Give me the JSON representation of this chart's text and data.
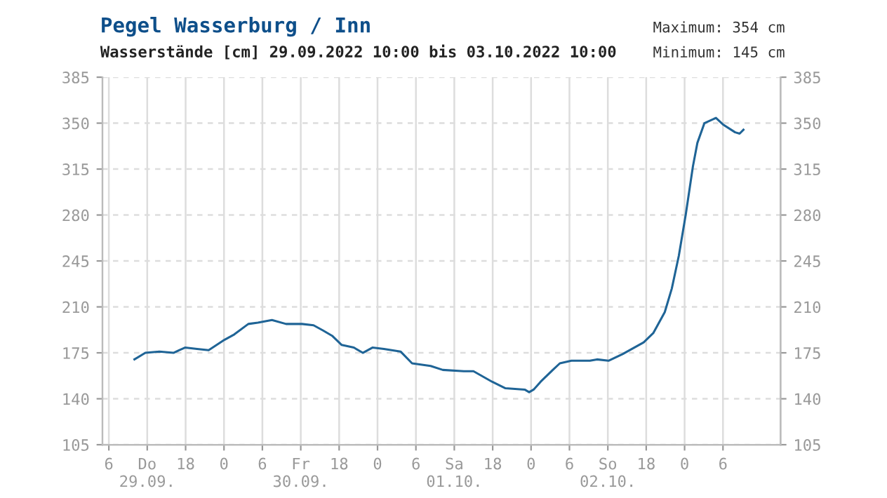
{
  "chart_data": {
    "type": "line",
    "title": "Pegel Wasserburg / Inn",
    "subtitle": "Wasserstände [cm] 29.09.2022 10:00 bis 03.10.2022 10:00",
    "annotations": [
      "Maximum: 354 cm",
      "Minimum: 145 cm"
    ],
    "x": [
      "2022-09-29T10:00",
      "2022-09-29T11:42",
      "2022-09-29T13:54",
      "2022-09-29T16:06",
      "2022-09-29T17:54",
      "2022-09-29T19:48",
      "2022-09-29T21:36",
      "2022-09-30T00:06",
      "2022-09-30T01:36",
      "2022-09-30T03:48",
      "2022-09-30T05:18",
      "2022-09-30T07:30",
      "2022-09-30T09:42",
      "2022-09-30T12:12",
      "2022-09-30T14:00",
      "2022-09-30T15:30",
      "2022-09-30T16:54",
      "2022-09-30T18:24",
      "2022-09-30T20:18",
      "2022-09-30T21:42",
      "2022-09-30T23:12",
      "2022-10-01T01:00",
      "2022-10-01T03:36",
      "2022-10-01T05:24",
      "2022-10-01T08:18",
      "2022-10-01T10:12",
      "2022-10-01T13:30",
      "2022-10-01T15:00",
      "2022-10-01T17:54",
      "2022-10-01T20:00",
      "2022-10-01T23:00",
      "2022-10-01T23:42",
      "2022-10-02T00:24",
      "2022-10-02T01:30",
      "2022-10-02T03:24",
      "2022-10-02T04:30",
      "2022-10-02T06:18",
      "2022-10-02T09:12",
      "2022-10-02T10:18",
      "2022-10-02T12:06",
      "2022-10-02T14:18",
      "2022-10-02T17:36",
      "2022-10-02T19:06",
      "2022-10-02T20:54",
      "2022-10-02T22:00",
      "2022-10-02T23:06",
      "2022-10-03T00:12",
      "2022-10-03T01:18",
      "2022-10-03T02:00",
      "2022-10-03T03:06",
      "2022-10-03T04:54",
      "2022-10-03T06:00",
      "2022-10-03T07:54",
      "2022-10-03T08:36",
      "2022-10-03T09:12"
    ],
    "series": [
      {
        "color": "#1f6496",
        "values": [
          170,
          175,
          176,
          175,
          179,
          178,
          177,
          185,
          189,
          197,
          198,
          200,
          197,
          197,
          196,
          192,
          188,
          181,
          179,
          175,
          179,
          178,
          176,
          167,
          165,
          162,
          161,
          161,
          153,
          148,
          147,
          145,
          147,
          153,
          162,
          167,
          169,
          169,
          170,
          169,
          174,
          183,
          190,
          206,
          224,
          249,
          281,
          317,
          335,
          350,
          354,
          349,
          343,
          342,
          345
        ]
      }
    ],
    "xlim": [
      "2022-09-29T05:00",
      "2022-10-03T15:00"
    ],
    "xticks": [
      {
        "value": "2022-09-29T06:00",
        "label": "6"
      },
      {
        "value": "2022-09-29T12:00",
        "label": "Do\n29.09."
      },
      {
        "value": "2022-09-29T18:00",
        "label": "18"
      },
      {
        "value": "2022-09-30T00:00",
        "label": "0"
      },
      {
        "value": "2022-09-30T06:00",
        "label": "6"
      },
      {
        "value": "2022-09-30T12:00",
        "label": "Fr\n30.09."
      },
      {
        "value": "2022-09-30T18:00",
        "label": "18"
      },
      {
        "value": "2022-10-01T00:00",
        "label": "0"
      },
      {
        "value": "2022-10-01T06:00",
        "label": "6"
      },
      {
        "value": "2022-10-01T12:00",
        "label": "Sa\n01.10."
      },
      {
        "value": "2022-10-01T18:00",
        "label": "18"
      },
      {
        "value": "2022-10-02T00:00",
        "label": "0"
      },
      {
        "value": "2022-10-02T06:00",
        "label": "6"
      },
      {
        "value": "2022-10-02T12:00",
        "label": "So\n02.10."
      },
      {
        "value": "2022-10-02T18:00",
        "label": "18"
      },
      {
        "value": "2022-10-03T00:00",
        "label": "0"
      },
      {
        "value": "2022-10-03T06:00",
        "label": "6"
      }
    ],
    "ylim": [
      105,
      385
    ],
    "yticks": [
      105,
      140,
      175,
      210,
      245,
      280,
      315,
      350,
      385
    ],
    "y2lim": [
      105,
      385
    ],
    "y2ticks": [
      105,
      140,
      175,
      210,
      245,
      280,
      315,
      350,
      385
    ],
    "grid": true,
    "legend": false,
    "marker": "none",
    "line_style": "solid"
  }
}
